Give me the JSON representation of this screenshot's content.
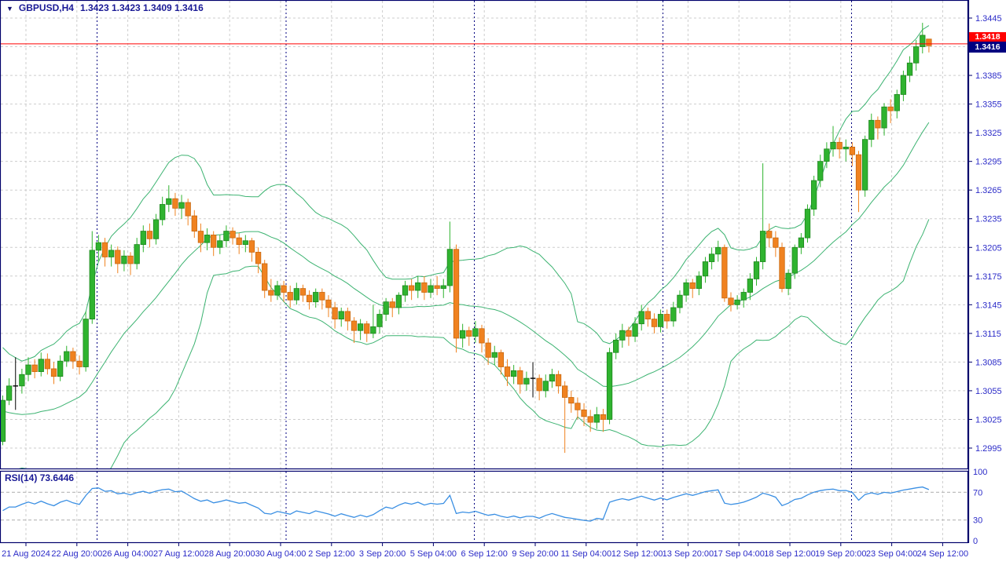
{
  "window": {
    "symbol_label": "GBPUSD,H4",
    "title_ohlc": "1.3423 1.3423 1.3409 1.3416"
  },
  "colors": {
    "background": "#FFFFFF",
    "panel_border": "#00006B",
    "grid": "#CDCDCD",
    "week_separator": "#000080",
    "axis_text": "#2B2BC8",
    "bull": "#2FB32F",
    "bull_border": "#1D861D",
    "bear": "#F08220",
    "bear_border": "#C8680F",
    "doji": "#000000",
    "bollinger": "#3CB371",
    "rsi_line": "#3A8FE3",
    "rsi_level": "#BDBDBD",
    "ask_line": "#FF0000",
    "ask_tag_bg": "#FF0000",
    "bid_tag_bg": "#000080"
  },
  "rsi_panel": {
    "indicator_name": "RSI(14)",
    "indicator_value": "73.6446",
    "scale_labels": [
      "100",
      "70",
      "30",
      "0"
    ]
  },
  "price_axis_ticks": [
    "1.3445",
    "1.3385",
    "1.3355",
    "1.3325",
    "1.3295",
    "1.3265",
    "1.3235",
    "1.3205",
    "1.3175",
    "1.3145",
    "1.3115",
    "1.3085",
    "1.3055",
    "1.3025",
    "1.2995"
  ],
  "chart_data": {
    "type": "candlestick",
    "symbol": "GBPUSD",
    "timeframe": "H4",
    "title_ohlc": {
      "open": 1.3423,
      "high": 1.3423,
      "low": 1.3409,
      "close": 1.3416
    },
    "ask_price": 1.3418,
    "bid_price": 1.3416,
    "ask_label": "1.3418",
    "bid_label": "1.3416",
    "y_axis": {
      "min": 1.2995,
      "max": 1.3445,
      "step": 0.003
    },
    "rsi_axis": {
      "min": 0,
      "max": 100,
      "levels": [
        30,
        70
      ]
    },
    "x_labels": [
      "21 Aug 2024",
      "22 Aug 20:00",
      "26 Aug 04:00",
      "27 Aug 12:00",
      "28 Aug 20:00",
      "30 Aug 04:00",
      "2 Sep 12:00",
      "3 Sep 20:00",
      "5 Sep 04:00",
      "6 Sep 12:00",
      "9 Sep 20:00",
      "11 Sep 04:00",
      "12 Sep 12:00",
      "13 Sep 20:00",
      "17 Sep 04:00",
      "18 Sep 12:00",
      "19 Sep 20:00",
      "23 Sep 04:00",
      "24 Sep 12:00"
    ],
    "week_separators": [
      "26 Aug 00:00",
      "2 Sep 00:00",
      "9 Sep 00:00",
      "16 Sep 00:00",
      "23 Sep 00:00"
    ],
    "indicators": {
      "bollinger_bands": {
        "period": 20,
        "deviation": 2
      },
      "rsi": {
        "period": 14,
        "current_value": 73.6446,
        "levels": [
          30,
          70
        ]
      }
    },
    "pre_history_closes": [
      1.3105,
      1.3095,
      1.3082,
      1.3088,
      1.3072,
      1.306,
      1.305,
      1.3055,
      1.3042,
      1.3035,
      1.3028,
      1.302,
      1.3012,
      1.3018,
      1.3005,
      1.2995,
      1.299,
      1.2985,
      1.2996,
      1.3002
    ],
    "candles_ohlc": [
      [
        1.3002,
        1.305,
        1.2998,
        1.3045
      ],
      [
        1.3045,
        1.3068,
        1.304,
        1.306
      ],
      [
        1.306,
        1.309,
        1.3035,
        1.306
      ],
      [
        1.306,
        1.3078,
        1.3052,
        1.3072
      ],
      [
        1.3072,
        1.309,
        1.3065,
        1.3082
      ],
      [
        1.3082,
        1.3088,
        1.3068,
        1.3075
      ],
      [
        1.3075,
        1.3095,
        1.307,
        1.3088
      ],
      [
        1.3088,
        1.3094,
        1.3072,
        1.3078
      ],
      [
        1.3078,
        1.3085,
        1.3062,
        1.307
      ],
      [
        1.307,
        1.3092,
        1.3065,
        1.3086
      ],
      [
        1.3086,
        1.3102,
        1.308,
        1.3096
      ],
      [
        1.3096,
        1.31,
        1.3078,
        1.3086
      ],
      [
        1.3086,
        1.3092,
        1.3072,
        1.308
      ],
      [
        1.308,
        1.3138,
        1.3075,
        1.313
      ],
      [
        1.313,
        1.3222,
        1.3125,
        1.3202
      ],
      [
        1.3202,
        1.3218,
        1.319,
        1.321
      ],
      [
        1.321,
        1.3215,
        1.3185,
        1.3195
      ],
      [
        1.3195,
        1.3208,
        1.3185,
        1.3202
      ],
      [
        1.3202,
        1.3206,
        1.3178,
        1.3188
      ],
      [
        1.3188,
        1.3202,
        1.318,
        1.3196
      ],
      [
        1.3196,
        1.32,
        1.3176,
        1.3188
      ],
      [
        1.3188,
        1.3215,
        1.3182,
        1.3208
      ],
      [
        1.3208,
        1.3228,
        1.32,
        1.3222
      ],
      [
        1.3222,
        1.323,
        1.3205,
        1.3214
      ],
      [
        1.3214,
        1.324,
        1.3208,
        1.3234
      ],
      [
        1.3234,
        1.3258,
        1.3228,
        1.325
      ],
      [
        1.325,
        1.327,
        1.3242,
        1.3256
      ],
      [
        1.3256,
        1.3262,
        1.3238,
        1.3246
      ],
      [
        1.3246,
        1.326,
        1.3235,
        1.3252
      ],
      [
        1.3252,
        1.3256,
        1.3228,
        1.3238
      ],
      [
        1.3238,
        1.3244,
        1.3215,
        1.3222
      ],
      [
        1.3222,
        1.323,
        1.32,
        1.321
      ],
      [
        1.321,
        1.3225,
        1.3202,
        1.3218
      ],
      [
        1.3218,
        1.3222,
        1.3196,
        1.3205
      ],
      [
        1.3205,
        1.3218,
        1.3198,
        1.3212
      ],
      [
        1.3212,
        1.3228,
        1.3205,
        1.3222
      ],
      [
        1.3222,
        1.3226,
        1.3208,
        1.3215
      ],
      [
        1.3215,
        1.322,
        1.3198,
        1.3208
      ],
      [
        1.3208,
        1.3218,
        1.32,
        1.3212
      ],
      [
        1.3212,
        1.3215,
        1.319,
        1.32
      ],
      [
        1.32,
        1.3205,
        1.3178,
        1.3188
      ],
      [
        1.3188,
        1.3192,
        1.3152,
        1.316
      ],
      [
        1.316,
        1.3172,
        1.3148,
        1.3155
      ],
      [
        1.3155,
        1.317,
        1.315,
        1.3165
      ],
      [
        1.3165,
        1.317,
        1.3148,
        1.3158
      ],
      [
        1.3158,
        1.3165,
        1.3142,
        1.315
      ],
      [
        1.315,
        1.3168,
        1.3145,
        1.3162
      ],
      [
        1.3162,
        1.3166,
        1.3148,
        1.3155
      ],
      [
        1.3155,
        1.316,
        1.314,
        1.3148
      ],
      [
        1.3148,
        1.3162,
        1.3142,
        1.3158
      ],
      [
        1.3158,
        1.3162,
        1.314,
        1.315
      ],
      [
        1.315,
        1.3155,
        1.3132,
        1.3142
      ],
      [
        1.3142,
        1.3148,
        1.312,
        1.313
      ],
      [
        1.313,
        1.3142,
        1.3122,
        1.3138
      ],
      [
        1.3138,
        1.3142,
        1.3118,
        1.3128
      ],
      [
        1.3128,
        1.3132,
        1.3105,
        1.3118
      ],
      [
        1.3118,
        1.313,
        1.3108,
        1.3125
      ],
      [
        1.3125,
        1.3128,
        1.3106,
        1.3115
      ],
      [
        1.3115,
        1.3145,
        1.311,
        1.3122
      ],
      [
        1.3122,
        1.314,
        1.3115,
        1.3135
      ],
      [
        1.3135,
        1.3152,
        1.3128,
        1.3148
      ],
      [
        1.3148,
        1.3152,
        1.3132,
        1.3142
      ],
      [
        1.3142,
        1.3158,
        1.3135,
        1.3155
      ],
      [
        1.3155,
        1.317,
        1.3148,
        1.3165
      ],
      [
        1.3165,
        1.3172,
        1.315,
        1.316
      ],
      [
        1.316,
        1.3175,
        1.3152,
        1.3168
      ],
      [
        1.3168,
        1.3175,
        1.315,
        1.3158
      ],
      [
        1.3158,
        1.3172,
        1.3152,
        1.3165
      ],
      [
        1.3165,
        1.3175,
        1.3155,
        1.3162
      ],
      [
        1.3162,
        1.3172,
        1.3152,
        1.3165
      ],
      [
        1.3165,
        1.3232,
        1.3158,
        1.3203
      ],
      [
        1.3203,
        1.3208,
        1.3095,
        1.311
      ],
      [
        1.311,
        1.3125,
        1.31,
        1.3118
      ],
      [
        1.3118,
        1.3122,
        1.3102,
        1.3112
      ],
      [
        1.3112,
        1.3128,
        1.3105,
        1.312
      ],
      [
        1.312,
        1.3124,
        1.3095,
        1.3105
      ],
      [
        1.3105,
        1.311,
        1.3082,
        1.309
      ],
      [
        1.309,
        1.3102,
        1.3082,
        1.3095
      ],
      [
        1.3095,
        1.3098,
        1.3072,
        1.308
      ],
      [
        1.308,
        1.3088,
        1.306,
        1.307
      ],
      [
        1.307,
        1.3082,
        1.3062,
        1.3076
      ],
      [
        1.3076,
        1.308,
        1.3052,
        1.3062
      ],
      [
        1.3062,
        1.3075,
        1.3055,
        1.3068
      ],
      [
        1.3068,
        1.3085,
        1.3048,
        1.3068
      ],
      [
        1.3068,
        1.3072,
        1.3045,
        1.3055
      ],
      [
        1.3055,
        1.3072,
        1.3048,
        1.3065
      ],
      [
        1.3065,
        1.3078,
        1.3058,
        1.3072
      ],
      [
        1.3072,
        1.3076,
        1.3052,
        1.306
      ],
      [
        1.306,
        1.3065,
        1.299,
        1.3048
      ],
      [
        1.3048,
        1.3055,
        1.3032,
        1.3042
      ],
      [
        1.3042,
        1.3048,
        1.3025,
        1.3035
      ],
      [
        1.3035,
        1.3042,
        1.3018,
        1.3028
      ],
      [
        1.3028,
        1.3035,
        1.3012,
        1.3022
      ],
      [
        1.3022,
        1.3038,
        1.3015,
        1.303
      ],
      [
        1.303,
        1.3036,
        1.3012,
        1.3025
      ],
      [
        1.3025,
        1.31,
        1.302,
        1.3095
      ],
      [
        1.3095,
        1.3115,
        1.3088,
        1.3108
      ],
      [
        1.3108,
        1.3125,
        1.31,
        1.3118
      ],
      [
        1.3118,
        1.3122,
        1.3102,
        1.3112
      ],
      [
        1.3112,
        1.3132,
        1.3106,
        1.3125
      ],
      [
        1.3125,
        1.3145,
        1.3118,
        1.3138
      ],
      [
        1.3138,
        1.3142,
        1.3122,
        1.313
      ],
      [
        1.313,
        1.3136,
        1.3115,
        1.3122
      ],
      [
        1.3122,
        1.314,
        1.3116,
        1.3135
      ],
      [
        1.3135,
        1.314,
        1.312,
        1.3128
      ],
      [
        1.3128,
        1.3148,
        1.3122,
        1.3142
      ],
      [
        1.3142,
        1.316,
        1.3136,
        1.3155
      ],
      [
        1.3155,
        1.3172,
        1.3148,
        1.3168
      ],
      [
        1.3168,
        1.3172,
        1.3152,
        1.3162
      ],
      [
        1.3162,
        1.318,
        1.3155,
        1.3175
      ],
      [
        1.3175,
        1.3195,
        1.3168,
        1.319
      ],
      [
        1.319,
        1.3205,
        1.3182,
        1.3198
      ],
      [
        1.3198,
        1.3212,
        1.319,
        1.3205
      ],
      [
        1.3205,
        1.3208,
        1.3148,
        1.3152
      ],
      [
        1.3152,
        1.3158,
        1.3138,
        1.3145
      ],
      [
        1.3145,
        1.3155,
        1.314,
        1.315
      ],
      [
        1.315,
        1.3162,
        1.3142,
        1.3158
      ],
      [
        1.3158,
        1.3178,
        1.315,
        1.3172
      ],
      [
        1.3172,
        1.3195,
        1.3165,
        1.319
      ],
      [
        1.319,
        1.3293,
        1.3182,
        1.3222
      ],
      [
        1.3222,
        1.323,
        1.3205,
        1.3215
      ],
      [
        1.3215,
        1.3222,
        1.3195,
        1.3205
      ],
      [
        1.3205,
        1.321,
        1.3158,
        1.3162
      ],
      [
        1.3162,
        1.3182,
        1.3155,
        1.3178
      ],
      [
        1.3178,
        1.3208,
        1.3172,
        1.3205
      ],
      [
        1.3205,
        1.322,
        1.3198,
        1.3215
      ],
      [
        1.3215,
        1.325,
        1.321,
        1.3245
      ],
      [
        1.3245,
        1.328,
        1.3238,
        1.3275
      ],
      [
        1.3275,
        1.3302,
        1.3268,
        1.3295
      ],
      [
        1.3295,
        1.3315,
        1.3288,
        1.3308
      ],
      [
        1.3308,
        1.3332,
        1.33,
        1.3315
      ],
      [
        1.3315,
        1.332,
        1.3298,
        1.3308
      ],
      [
        1.3308,
        1.3318,
        1.3295,
        1.331
      ],
      [
        1.331,
        1.3315,
        1.329,
        1.3302
      ],
      [
        1.3302,
        1.3306,
        1.3242,
        1.3265
      ],
      [
        1.3265,
        1.3322,
        1.3258,
        1.3318
      ],
      [
        1.3318,
        1.3345,
        1.331,
        1.3338
      ],
      [
        1.3338,
        1.3342,
        1.3318,
        1.333
      ],
      [
        1.333,
        1.3356,
        1.3322,
        1.3352
      ],
      [
        1.3352,
        1.336,
        1.3335,
        1.3348
      ],
      [
        1.3348,
        1.337,
        1.334,
        1.3365
      ],
      [
        1.3365,
        1.339,
        1.3358,
        1.3385
      ],
      [
        1.3385,
        1.3405,
        1.3378,
        1.3398
      ],
      [
        1.3398,
        1.3422,
        1.339,
        1.3415
      ],
      [
        1.3415,
        1.344,
        1.3408,
        1.3427
      ],
      [
        1.3423,
        1.3423,
        1.3409,
        1.3416
      ]
    ]
  }
}
